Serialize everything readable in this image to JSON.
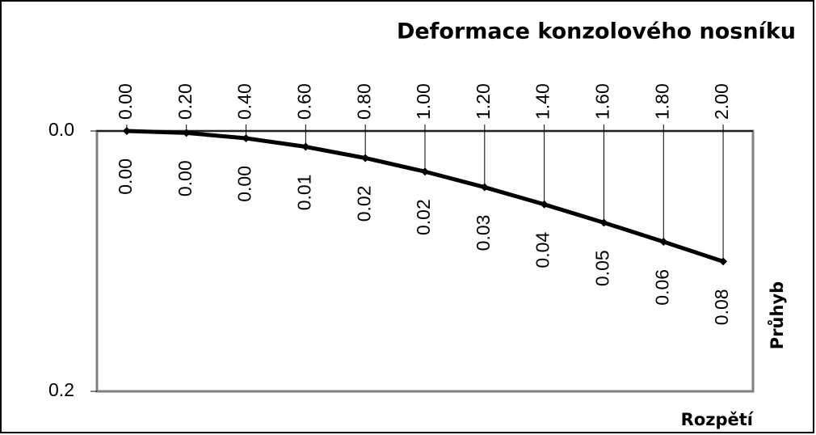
{
  "chart_data": {
    "type": "line",
    "title": "Deformace konzolového nosníku",
    "x_label": "Rozpětí",
    "y_label": "Průhyb",
    "x": [
      0,
      0.2,
      0.4,
      0.6,
      0.8,
      1.0,
      1.2,
      1.4,
      1.6,
      1.8,
      2.0
    ],
    "series": [
      {
        "color": "#000000",
        "values": [
          0,
          0.0011,
          0.0042,
          0.0091,
          0.0156,
          0.0234,
          0.0324,
          0.0423,
          0.0528,
          0.0638,
          0.0752
        ],
        "value_labels": [
          "0.00",
          "0.00",
          "0.00",
          "0.01",
          "0.02",
          "0.02",
          "0.03",
          "0.04",
          "0.05",
          "0.06",
          "0.08"
        ]
      }
    ],
    "xlim": [
      -0.1,
      2.1
    ],
    "xticks": [
      {
        "value": 0,
        "label": "0.00"
      },
      {
        "value": 0.2,
        "label": "0.20"
      },
      {
        "value": 0.4,
        "label": "0.40"
      },
      {
        "value": 0.6,
        "label": "0.60"
      },
      {
        "value": 0.8,
        "label": "0.80"
      },
      {
        "value": 1.0,
        "label": "1.00"
      },
      {
        "value": 1.2,
        "label": "1.20"
      },
      {
        "value": 1.4,
        "label": "1.40"
      },
      {
        "value": 1.6,
        "label": "1.60"
      },
      {
        "value": 1.8,
        "label": "1.80"
      },
      {
        "value": 2.0,
        "label": "2.00"
      }
    ],
    "ylim": [
      0,
      0.15
    ],
    "yticks": [
      {
        "value": 0,
        "label": "0.0"
      },
      {
        "value": 0.15,
        "label": "0.2"
      }
    ],
    "y_inverted": true,
    "drop_lines": true
  }
}
